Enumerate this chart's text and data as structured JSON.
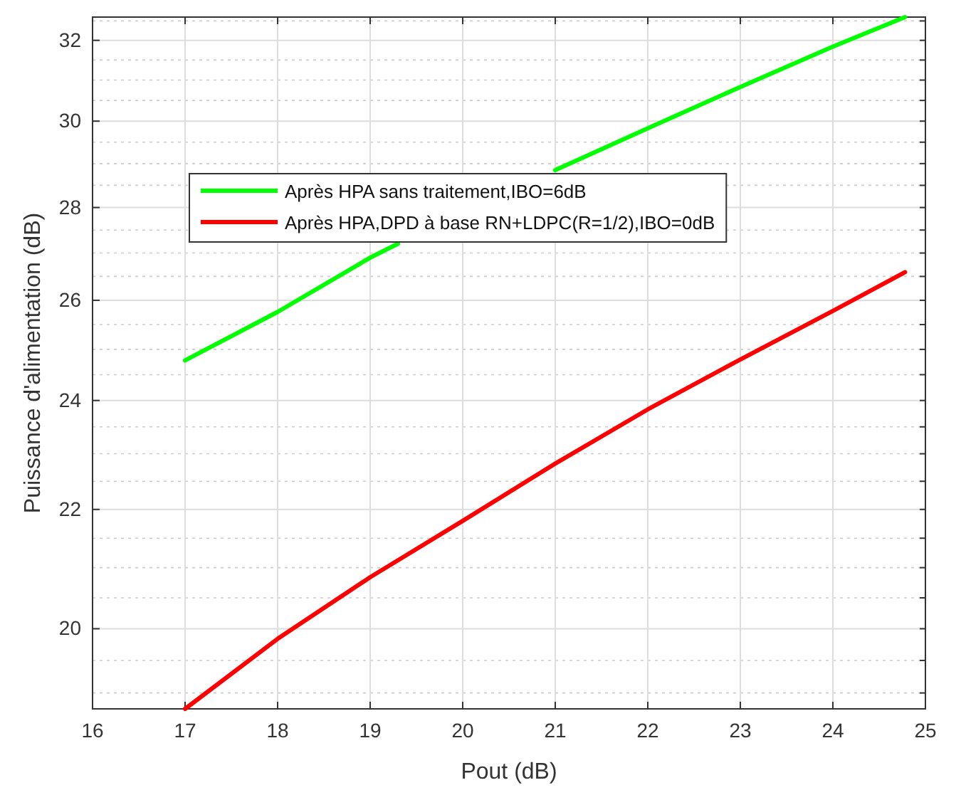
{
  "chart_data": {
    "type": "line",
    "xlabel": "Pout (dB)",
    "ylabel": "Puissance d'alimentation (dB)",
    "log": "y",
    "xlim": [
      16,
      25
    ],
    "xticks": [
      16,
      17,
      18,
      19,
      20,
      21,
      22,
      23,
      24,
      25
    ],
    "ylim": [
      18.76,
      32.6
    ],
    "yticks": [
      20,
      22,
      24,
      26,
      28,
      30,
      32
    ],
    "grid": true,
    "legend": "top left",
    "x": [
      17,
      18,
      19,
      20,
      21,
      22,
      23,
      24,
      24.78
    ],
    "series": [
      {
        "name": "Après HPA sans traitement,IBO=6dB",
        "color": "#00ff00",
        "x": [
          17,
          18,
          19,
          19.3,
          20,
          21,
          22,
          23,
          24,
          24.78
        ],
        "values": [
          24.78,
          25.76,
          26.9,
          27.2,
          null,
          28.85,
          29.83,
          30.83,
          31.84,
          32.6
        ]
      },
      {
        "name": "Après HPA,DPD à base RN+LDPC(R=1/2),IBO=0dB",
        "color": "#ff0000",
        "values": [
          18.76,
          19.84,
          20.84,
          21.8,
          22.82,
          23.83,
          24.8,
          25.78,
          26.59
        ]
      }
    ]
  }
}
